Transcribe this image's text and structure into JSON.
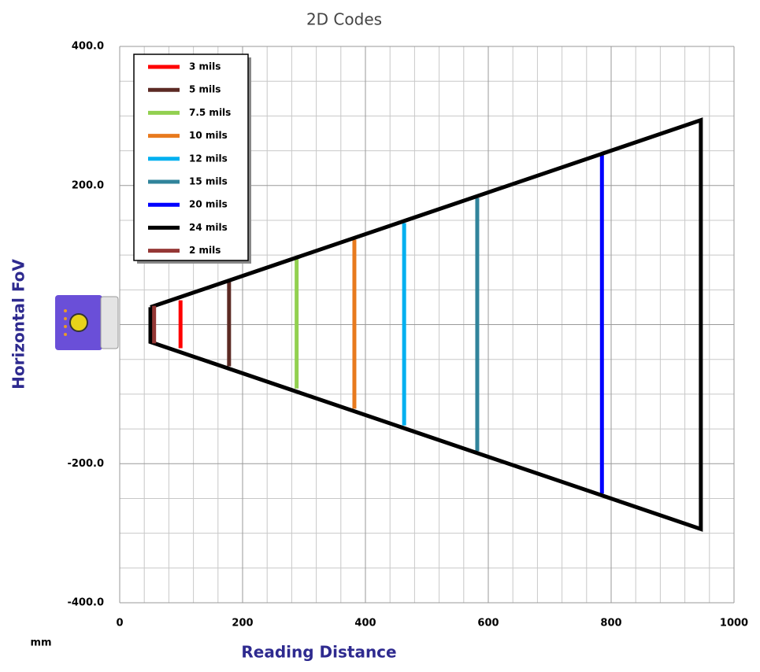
{
  "chart_data": {
    "type": "line",
    "title": "2D Codes",
    "x_label": "Reading Distance",
    "y_label": "Horizontal FoV",
    "unit_note": "mm",
    "xlim": [
      0,
      1000
    ],
    "xticks": [
      0,
      200,
      400,
      600,
      800,
      1000
    ],
    "ylim": [
      -400,
      400
    ],
    "yticks": [
      {
        "value": 400,
        "label": "400.0"
      },
      {
        "value": 200,
        "label": "200.0"
      },
      {
        "value": -200,
        "label": "-200.0"
      },
      {
        "value": -400,
        "label": "-400.0"
      }
    ],
    "grid": true,
    "legend": "upper left",
    "series": [
      {
        "name": "3 mils",
        "color": "#ff0000",
        "x": [
          99,
          99
        ],
        "values": [
          35,
          -34
        ]
      },
      {
        "name": "5 mils",
        "color": "#5c2a24",
        "x": [
          178,
          178
        ],
        "values": [
          62,
          -60
        ]
      },
      {
        "name": "7.5 mils",
        "color": "#92d050",
        "x": [
          288,
          288
        ],
        "values": [
          94,
          -92
        ]
      },
      {
        "name": "10 mils",
        "color": "#e87a1e",
        "x": [
          382,
          382
        ],
        "values": [
          122,
          -121
        ]
      },
      {
        "name": "12 mils",
        "color": "#00b0f0",
        "x": [
          463,
          463
        ],
        "values": [
          146,
          -145
        ]
      },
      {
        "name": "15 mils",
        "color": "#31849b",
        "x": [
          582,
          582
        ],
        "values": [
          182,
          -182
        ]
      },
      {
        "name": "20 mils",
        "color": "#0000ff",
        "x": [
          785,
          785
        ],
        "values": [
          245,
          -243
        ]
      },
      {
        "name": "24 mils",
        "color": "#000000",
        "x": [
          50,
          946,
          946,
          50,
          50
        ],
        "values": [
          25,
          294,
          -294,
          -25,
          25
        ]
      },
      {
        "name": "2 mils",
        "color": "#953735",
        "x": [
          56,
          56
        ],
        "values": [
          27,
          -27
        ]
      }
    ]
  }
}
